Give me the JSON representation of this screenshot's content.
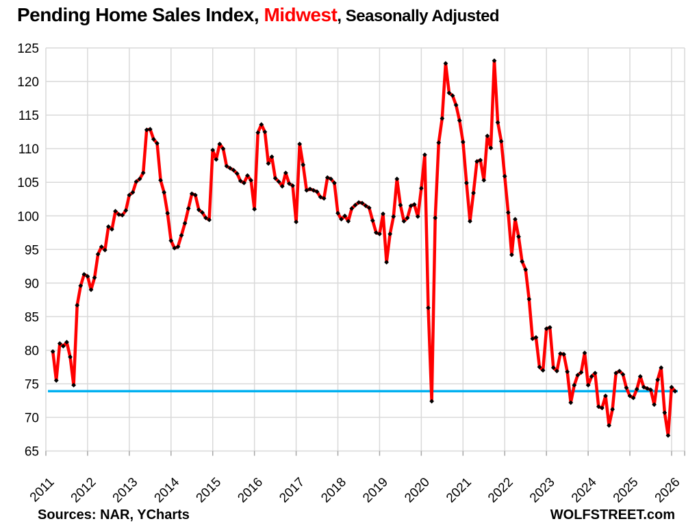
{
  "title": {
    "part1": "Pending Home Sales Index, ",
    "highlight": "Midwest",
    "part2": ", Seasonally Adjusted",
    "highlight_color": "#FF0000"
  },
  "footer": {
    "sources": "Sources: NAR, YCharts",
    "branding": "WOLFSTREET.com"
  },
  "chart_data": {
    "type": "line",
    "title": "Pending Home Sales Index, Midwest, Seasonally Adjusted",
    "frequency": "monthly",
    "start_month": "2011-03",
    "end_month": "2026-02",
    "values": [
      79.8,
      75.5,
      81.0,
      80.6,
      81.2,
      79.0,
      74.8,
      86.7,
      89.6,
      91.3,
      91.0,
      89.0,
      90.8,
      94.3,
      95.4,
      94.9,
      98.4,
      98.0,
      100.7,
      100.2,
      100.1,
      100.8,
      103.1,
      103.5,
      105.1,
      105.5,
      106.4,
      112.8,
      112.9,
      111.4,
      110.8,
      105.3,
      103.5,
      100.4,
      96.3,
      95.2,
      95.4,
      97.1,
      98.9,
      101.1,
      103.3,
      103.1,
      100.9,
      100.5,
      99.7,
      99.4,
      109.8,
      108.4,
      110.7,
      110.0,
      107.4,
      107.1,
      106.8,
      106.3,
      105.2,
      104.9,
      106.0,
      105.3,
      101.0,
      112.4,
      113.6,
      112.5,
      107.8,
      108.8,
      105.6,
      105.1,
      104.4,
      106.4,
      104.8,
      104.5,
      99.1,
      110.7,
      107.6,
      103.8,
      104.0,
      103.8,
      103.6,
      102.8,
      102.6,
      105.7,
      105.5,
      104.9,
      100.4,
      99.5,
      100.0,
      99.2,
      101.1,
      101.6,
      102.0,
      101.9,
      101.5,
      101.2,
      99.3,
      97.5,
      97.3,
      100.3,
      93.1,
      97.3,
      99.9,
      105.5,
      101.6,
      99.2,
      99.7,
      101.5,
      101.7,
      99.9,
      104.1,
      109.1,
      86.3,
      72.4,
      99.7,
      110.9,
      114.5,
      122.7,
      118.3,
      117.9,
      116.5,
      114.2,
      111.0,
      104.9,
      99.2,
      103.4,
      108.1,
      108.3,
      105.3,
      111.9,
      110.1,
      123.1,
      113.9,
      111.1,
      105.9,
      100.5,
      94.2,
      99.5,
      96.9,
      93.2,
      92.0,
      87.6,
      81.7,
      81.9,
      77.5,
      77.0,
      83.2,
      83.4,
      77.4,
      76.9,
      79.5,
      79.4,
      76.8,
      72.2,
      74.8,
      76.3,
      76.7,
      79.6,
      74.8,
      76.1,
      76.6,
      71.6,
      71.4,
      73.2,
      68.8,
      71.2,
      76.6,
      76.9,
      76.4,
      74.4,
      73.2,
      72.9,
      74.2,
      76.1,
      74.5,
      74.3,
      74.1,
      71.9,
      75.6,
      77.4,
      70.7,
      67.3,
      74.5,
      73.9
    ],
    "x_tick_years": [
      2011,
      2012,
      2013,
      2014,
      2015,
      2016,
      2017,
      2018,
      2019,
      2020,
      2021,
      2022,
      2023,
      2024,
      2025,
      2026
    ],
    "x_label_rotation": -45,
    "ylim": [
      65,
      125
    ],
    "ytick_step": 5,
    "grid": true,
    "legend": "none",
    "reference_line": {
      "value": 73.9,
      "color": "#00B0F0"
    },
    "line_color": "#FF0000",
    "marker": {
      "shape": "diamond",
      "color": "#000000",
      "size": 3.4
    },
    "gridline_color": "#D9D9D9",
    "tick_color": "#A6A6A6",
    "axis_text_color": "#000000"
  }
}
